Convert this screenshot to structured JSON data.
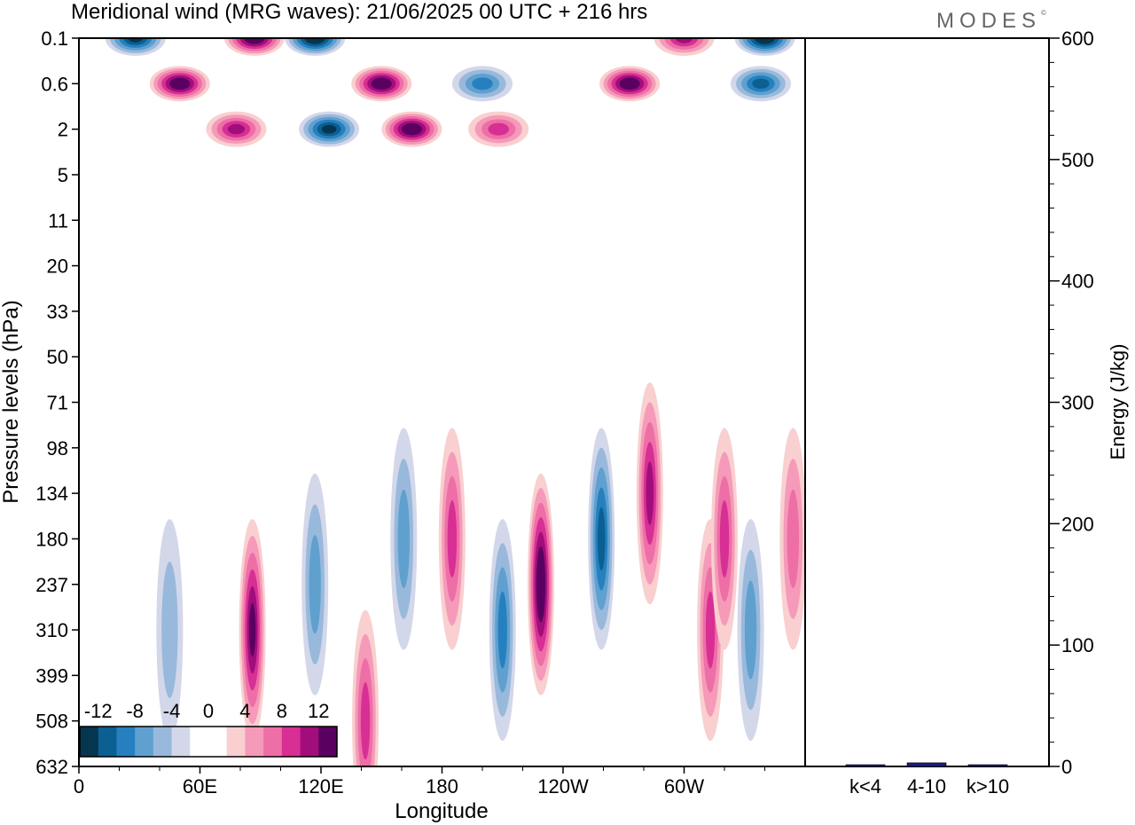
{
  "header": {
    "title": "Meridional wind (MRG waves):  21/06/2025  00 UTC  + 216 hrs",
    "brand": "MODES"
  },
  "chart_data": [
    {
      "type": "heatmap",
      "title": "Meridional wind (MRG waves):  21/06/2025  00 UTC  + 216 hrs",
      "xlabel": "Longitude",
      "ylabel": "Pressure levels (hPa)",
      "x_ticks": [
        "0",
        "60E",
        "120E",
        "180",
        "120W",
        "60W"
      ],
      "x_tick_degrees": [
        0,
        60,
        120,
        180,
        240,
        300
      ],
      "xlim": [
        0,
        360
      ],
      "y_ticks": [
        "0.1",
        "0.6",
        "2",
        "5",
        "11",
        "20",
        "33",
        "50",
        "71",
        "98",
        "134",
        "180",
        "237",
        "310",
        "399",
        "508",
        "632"
      ],
      "colorbar": {
        "tick_labels": [
          "-12",
          "-8",
          "-4",
          "0",
          "4",
          "8",
          "12"
        ],
        "levels": [
          -14,
          -12,
          -10,
          -8,
          -6,
          -4,
          -2,
          0,
          2,
          4,
          6,
          8,
          10,
          12,
          14
        ],
        "colors": [
          "#06354f",
          "#0b5f91",
          "#2680bf",
          "#5fa0cf",
          "#98b9dc",
          "#d3d7ea",
          "#ffffff",
          "#ffffff",
          "#f9cfcf",
          "#f59ab9",
          "#ee6ea6",
          "#d72f94",
          "#a10e7c",
          "#5a0061"
        ]
      },
      "features": [
        {
          "lon": 28,
          "level": "0.1",
          "value": -12
        },
        {
          "lon": 50,
          "level": "0.6",
          "value": 14
        },
        {
          "lon": 87,
          "level": "0.1",
          "value": 14
        },
        {
          "lon": 78,
          "level": "2",
          "value": 10
        },
        {
          "lon": 117,
          "level": "0.1",
          "value": -14
        },
        {
          "lon": 124,
          "level": "2",
          "value": -12
        },
        {
          "lon": 150,
          "level": "0.6",
          "value": 14
        },
        {
          "lon": 165,
          "level": "2",
          "value": 14
        },
        {
          "lon": 200,
          "level": "0.6",
          "value": -8
        },
        {
          "lon": 208,
          "level": "2",
          "value": 8
        },
        {
          "lon": 273,
          "level": "0.6",
          "value": 14
        },
        {
          "lon": 300,
          "level": "0.1",
          "value": 10
        },
        {
          "lon": 340,
          "level": "0.1",
          "value": -14
        },
        {
          "lon": 338,
          "level": "0.6",
          "value": -10
        },
        {
          "lon": 45,
          "level": "310",
          "value": -4
        },
        {
          "lon": 86,
          "level": "310",
          "value": 12
        },
        {
          "lon": 117,
          "level": "237",
          "value": -6
        },
        {
          "lon": 142,
          "level": "508",
          "value": 8
        },
        {
          "lon": 161,
          "level": "180",
          "value": -6
        },
        {
          "lon": 185,
          "level": "180",
          "value": 8
        },
        {
          "lon": 210,
          "level": "310",
          "value": -8
        },
        {
          "lon": 229,
          "level": "237",
          "value": 14
        },
        {
          "lon": 259,
          "level": "180",
          "value": -10
        },
        {
          "lon": 283,
          "level": "134",
          "value": 10
        },
        {
          "lon": 313,
          "level": "310",
          "value": 8
        },
        {
          "lon": 320,
          "level": "180",
          "value": 8
        },
        {
          "lon": 333,
          "level": "310",
          "value": -6
        },
        {
          "lon": 354,
          "level": "180",
          "value": 6
        }
      ]
    },
    {
      "type": "bar",
      "categories": [
        "k<4",
        "4-10",
        "k>10"
      ],
      "values": [
        1,
        3,
        0.5
      ],
      "ylabel": "Energy (J/kg)",
      "ylim": [
        0,
        600
      ],
      "y_ticks": [
        "0",
        "100",
        "200",
        "300",
        "400",
        "500",
        "600"
      ],
      "bar_color": "#1a1a8c"
    }
  ]
}
